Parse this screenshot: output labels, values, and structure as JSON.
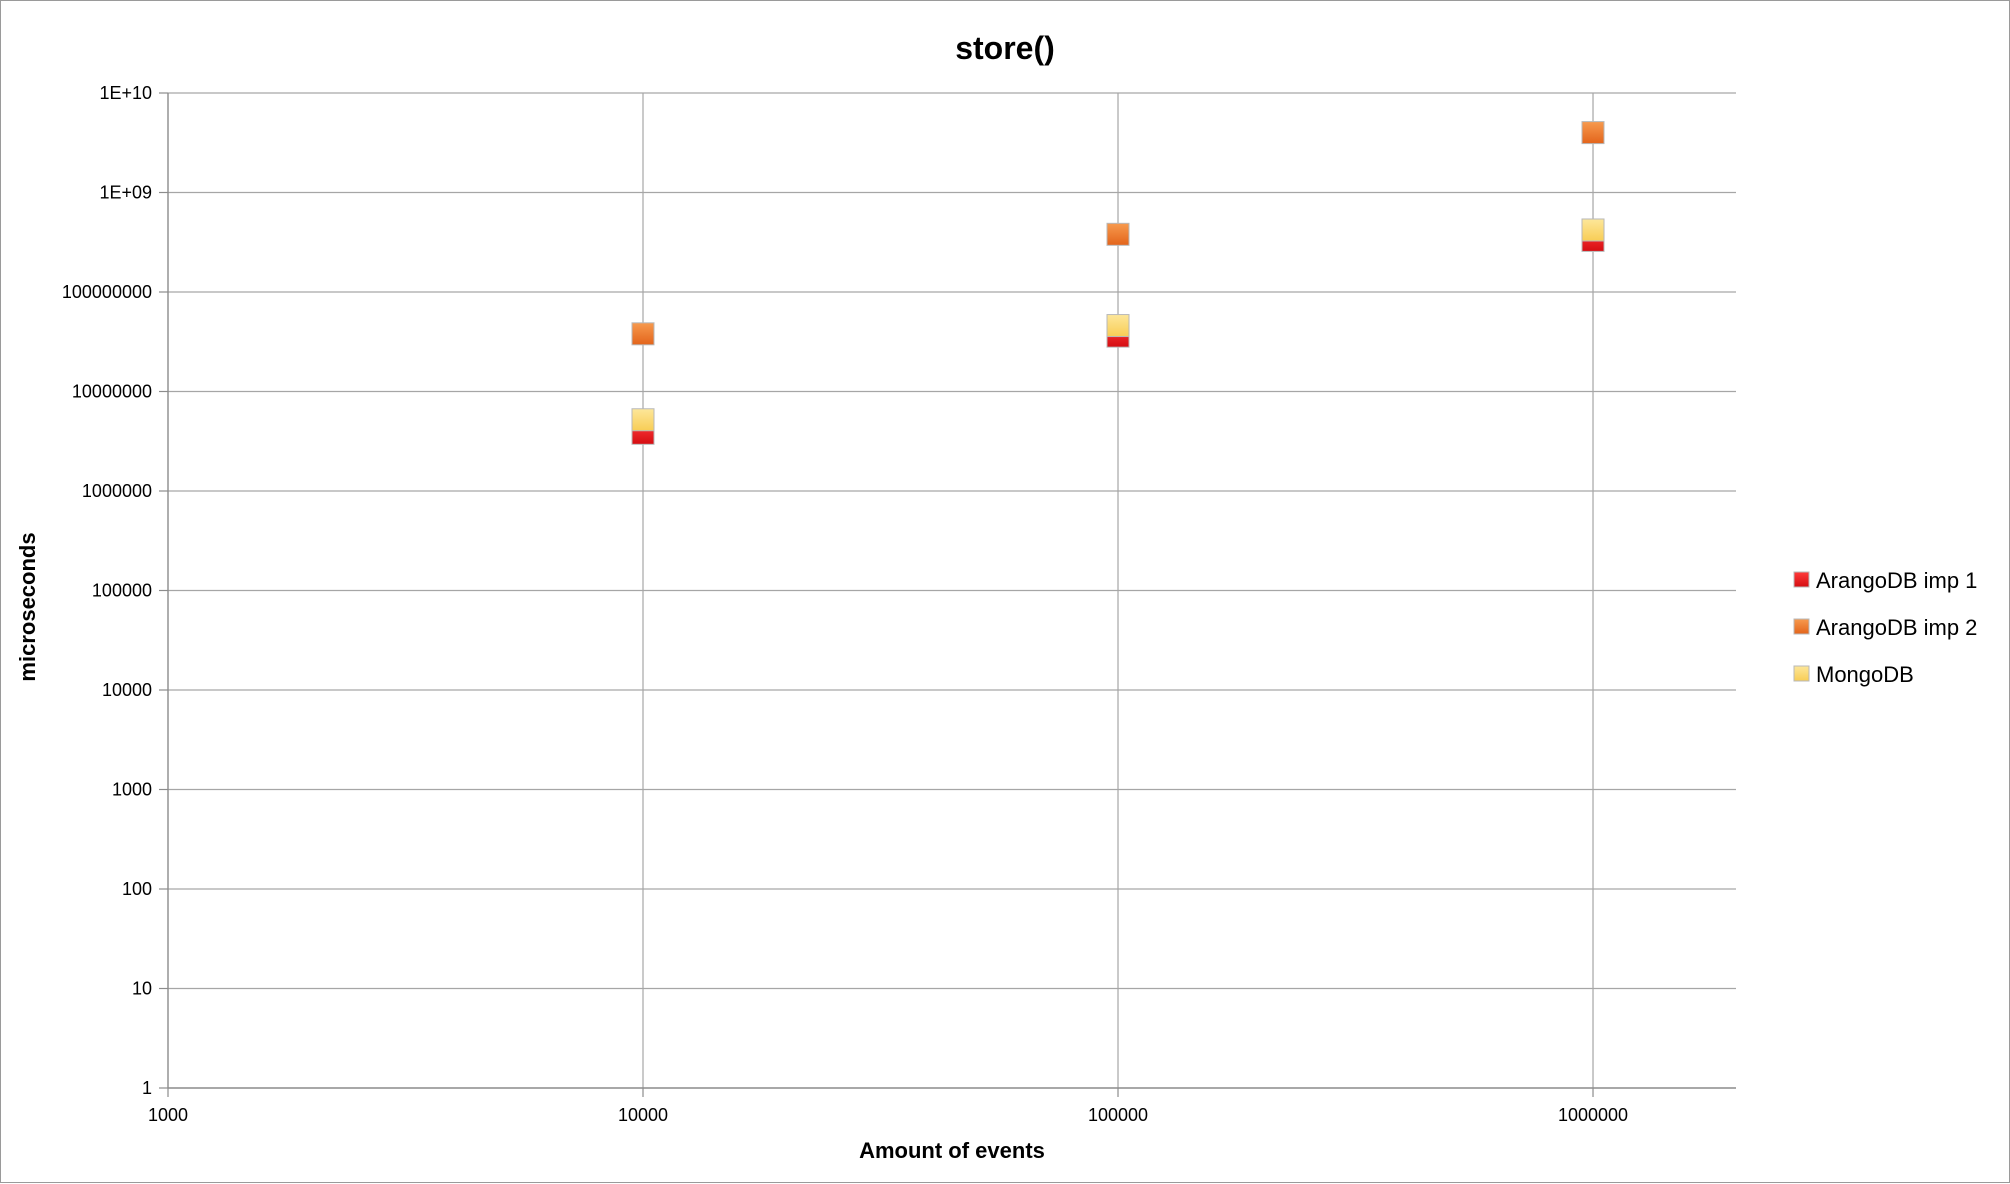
{
  "chart_data": {
    "type": "scatter",
    "title": "store()",
    "xlabel": "Amount of events",
    "ylabel": "microseconds",
    "x_scale": "log",
    "y_scale": "log",
    "xlim": [
      1000,
      2000000
    ],
    "ylim": [
      1,
      10000000000
    ],
    "x_ticks": [
      "1000",
      "10000",
      "100000",
      "1000000"
    ],
    "y_ticks": [
      "1",
      "10",
      "100",
      "1000",
      "10000",
      "100000",
      "1000000",
      "10000000",
      "100000000",
      "1E+09",
      "1E+10"
    ],
    "grid": true,
    "legend_position": "right",
    "series": [
      {
        "name": "ArangoDB imp 1",
        "color": "#e8141b",
        "x": [
          10000,
          100000,
          1000000
        ],
        "y": [
          3800000,
          36000000,
          330000000
        ]
      },
      {
        "name": "ArangoDB imp 2",
        "color": "#f07a2a",
        "x": [
          10000,
          100000,
          1000000
        ],
        "y": [
          38000000,
          380000000,
          4000000000
        ]
      },
      {
        "name": "MongoDB",
        "color": "#fbd66e",
        "x": [
          10000,
          100000,
          1000000
        ],
        "y": [
          5200000,
          46000000,
          420000000
        ]
      }
    ]
  }
}
